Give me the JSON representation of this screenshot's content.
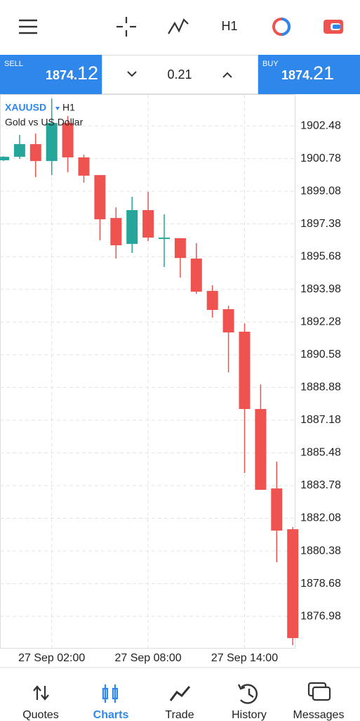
{
  "toolbar": {
    "timeframe": "H1"
  },
  "trade_panel": {
    "sell_label": "SELL",
    "sell_price_main": "1874.",
    "sell_price_big": "12",
    "volume": "0.21",
    "buy_label": "BUY",
    "buy_price_main": "1874.",
    "buy_price_big": "21"
  },
  "chart_data": {
    "type": "candlestick",
    "symbol": "XAUUSD",
    "timeframe": "H1",
    "description": "Gold vs US Dollar",
    "categories": [
      null,
      null,
      null,
      "27 Sep 02:00",
      null,
      null,
      null,
      null,
      null,
      "27 Sep 08:00",
      null,
      null,
      null,
      null,
      null,
      "27 Sep 14:00",
      null,
      null,
      null
    ],
    "open": [
      1900.69,
      1900.87,
      1901.53,
      1900.65,
      1902.63,
      1900.84,
      1899.92,
      1897.69,
      1896.34,
      1898.1,
      1896.6,
      1896.64,
      1895.58,
      1893.9,
      1892.95,
      1891.78,
      1887.76,
      1883.63,
      1881.51
    ],
    "high": [
      1900.9,
      1902.01,
      1902.08,
      1903.9,
      1902.99,
      1900.98,
      1899.92,
      1898.24,
      1898.79,
      1899.05,
      1897.88,
      1896.64,
      1896.38,
      1894.19,
      1893.13,
      1892.21,
      1889.04,
      1885.02,
      1881.62
    ],
    "low": [
      1900.65,
      1900.76,
      1899.81,
      1899.92,
      1900.07,
      1899.52,
      1896.53,
      1895.58,
      1895.87,
      1896.49,
      1895.14,
      1894.59,
      1893.75,
      1892.51,
      1889.66,
      1884.43,
      1883.56,
      1879.79,
      1875.48
    ],
    "close": [
      1900.87,
      1901.53,
      1900.65,
      1902.63,
      1900.84,
      1899.89,
      1897.62,
      1896.27,
      1898.1,
      1896.67,
      1896.67,
      1895.61,
      1893.86,
      1892.91,
      1891.74,
      1887.76,
      1883.56,
      1881.44,
      1875.85
    ],
    "up_color": "#26a69a",
    "down_color": "#ef5350",
    "ylim": [
      1875.34,
      1904.09
    ],
    "yticks": [
      1902.48,
      1900.78,
      1899.08,
      1897.38,
      1895.68,
      1893.98,
      1892.28,
      1890.58,
      1888.88,
      1887.18,
      1885.48,
      1883.78,
      1882.08,
      1880.38,
      1878.68,
      1876.98
    ],
    "grid": true
  },
  "nav": [
    {
      "label": "Quotes"
    },
    {
      "label": "Charts"
    },
    {
      "label": "Trade"
    },
    {
      "label": "History"
    },
    {
      "label": "Messages"
    }
  ]
}
